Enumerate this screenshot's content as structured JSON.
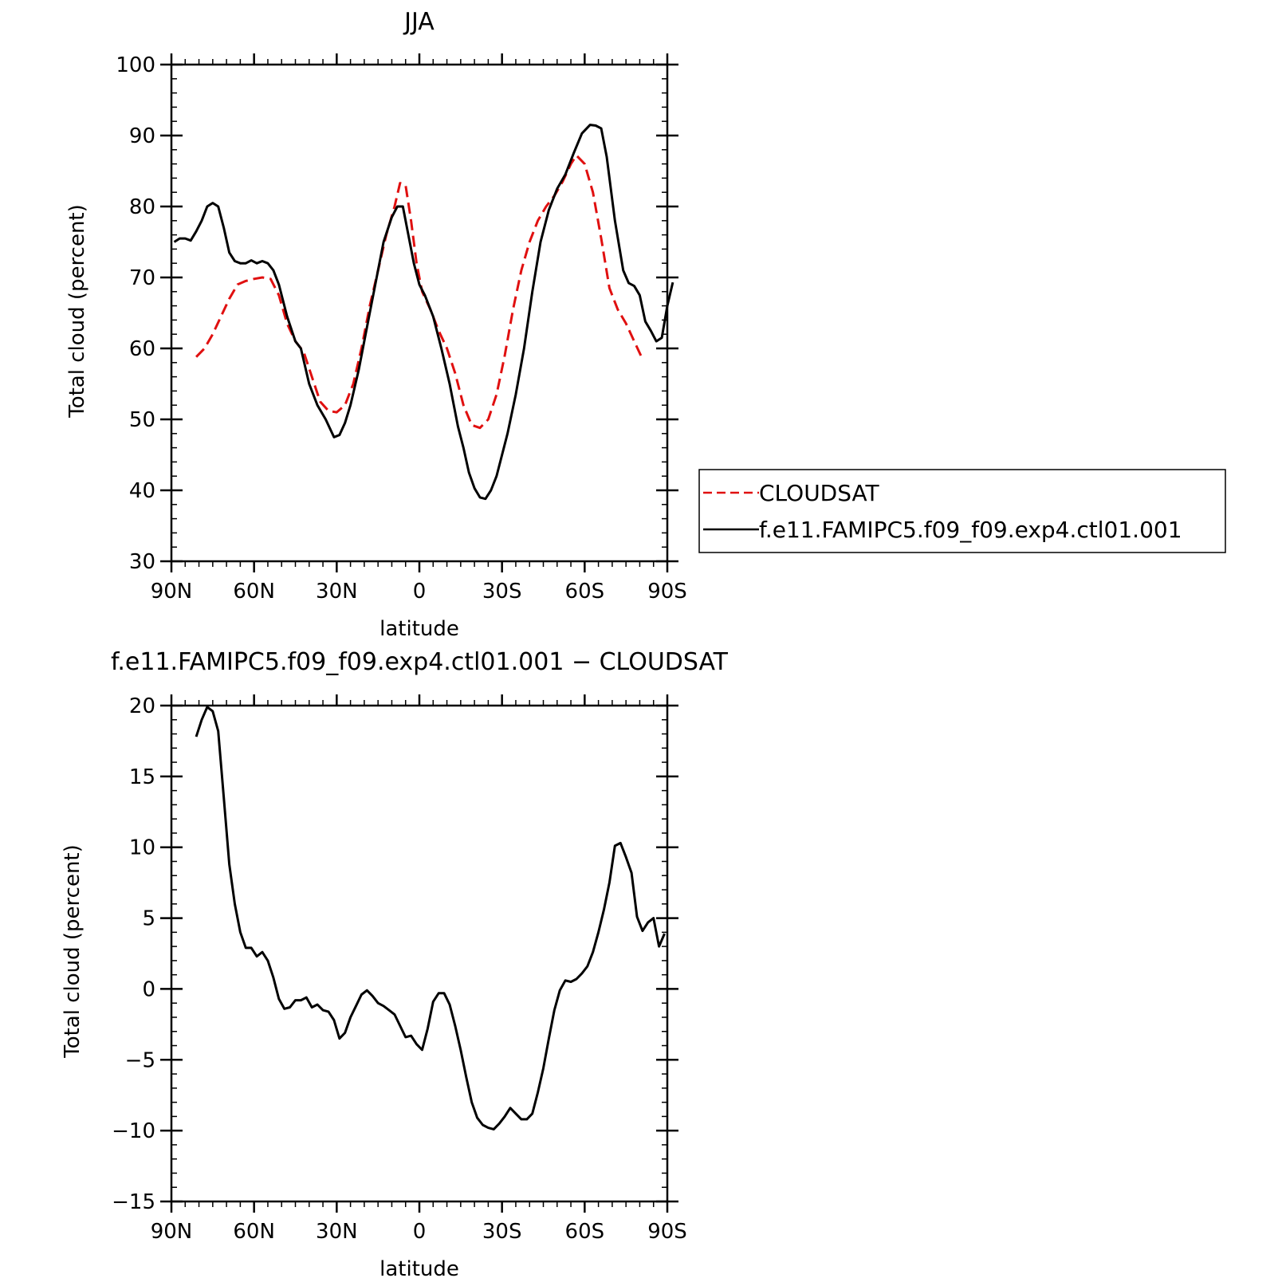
{
  "chart_data": [
    {
      "type": "line",
      "title": "JJA",
      "xlabel": "latitude",
      "ylabel": "Total cloud (percent)",
      "xlim": [
        -90,
        90
      ],
      "ylim": [
        30,
        100
      ],
      "xticks": [
        -90,
        -60,
        -30,
        0,
        30,
        60,
        90
      ],
      "xtick_labels": [
        "90N",
        "60N",
        "30N",
        "0",
        "30S",
        "60S",
        "90S"
      ],
      "yticks": [
        30,
        40,
        50,
        60,
        70,
        80,
        90,
        100
      ],
      "ytick_labels": [
        "30",
        "40",
        "50",
        "60",
        "70",
        "80",
        "90",
        "100"
      ],
      "legend": {
        "position": "right"
      },
      "series": [
        {
          "name": "CLOUDSAT",
          "color": "#e01010",
          "dash": "dashed",
          "points": [
            [
              -81,
              58.8
            ],
            [
              -78,
              60
            ],
            [
              -75,
              62
            ],
            [
              -72,
              64.5
            ],
            [
              -69,
              67
            ],
            [
              -66,
              69
            ],
            [
              -63,
              69.5
            ],
            [
              -60,
              69.8
            ],
            [
              -57,
              70
            ],
            [
              -54,
              69.8
            ],
            [
              -51,
              67.5
            ],
            [
              -48,
              63.5
            ],
            [
              -45,
              61
            ],
            [
              -42,
              59.5
            ],
            [
              -39,
              56
            ],
            [
              -36,
              52.5
            ],
            [
              -33,
              51.2
            ],
            [
              -30,
              51
            ],
            [
              -27,
              52
            ],
            [
              -24,
              55
            ],
            [
              -21,
              60
            ],
            [
              -18,
              66
            ],
            [
              -15,
              71
            ],
            [
              -12,
              76
            ],
            [
              -9,
              80
            ],
            [
              -7,
              83.3
            ],
            [
              -5,
              83
            ],
            [
              -3,
              78
            ],
            [
              -1,
              72
            ],
            [
              1,
              68
            ],
            [
              4,
              65.5
            ],
            [
              7,
              62.5
            ],
            [
              10,
              60
            ],
            [
              13,
              56.5
            ],
            [
              16,
              52
            ],
            [
              19,
              49.2
            ],
            [
              22,
              48.8
            ],
            [
              25,
              50
            ],
            [
              28,
              53.5
            ],
            [
              31,
              59
            ],
            [
              34,
              65.5
            ],
            [
              37,
              71
            ],
            [
              40,
              75
            ],
            [
              43,
              78
            ],
            [
              46,
              80
            ],
            [
              49,
              81.5
            ],
            [
              52,
              83.5
            ],
            [
              55,
              86
            ],
            [
              57,
              87.2
            ],
            [
              60,
              86
            ],
            [
              63,
              82
            ],
            [
              66,
              75.5
            ],
            [
              69,
              68.5
            ],
            [
              72,
              65.5
            ],
            [
              75,
              63.5
            ],
            [
              78,
              61
            ],
            [
              81,
              58.5
            ]
          ]
        },
        {
          "name": "f.e11.FAMIPC5.f09_f09.exp4.ctl01.001",
          "color": "#000000",
          "dash": "solid",
          "points": [
            [
              -89,
              75
            ],
            [
              -87,
              75.5
            ],
            [
              -85,
              75.5
            ],
            [
              -83,
              75.2
            ],
            [
              -81,
              76.5
            ],
            [
              -79,
              78
            ],
            [
              -77,
              80
            ],
            [
              -75,
              80.5
            ],
            [
              -73,
              80
            ],
            [
              -71,
              77
            ],
            [
              -69,
              73.5
            ],
            [
              -67,
              72.3
            ],
            [
              -65,
              72
            ],
            [
              -63,
              72
            ],
            [
              -61,
              72.4
            ],
            [
              -59,
              72
            ],
            [
              -57,
              72.3
            ],
            [
              -55,
              72
            ],
            [
              -53,
              71
            ],
            [
              -51,
              69
            ],
            [
              -48,
              64.5
            ],
            [
              -45,
              61
            ],
            [
              -43,
              60
            ],
            [
              -40,
              55
            ],
            [
              -37,
              52
            ],
            [
              -34,
              50
            ],
            [
              -31,
              47.5
            ],
            [
              -29,
              47.8
            ],
            [
              -27,
              49.5
            ],
            [
              -25,
              52
            ],
            [
              -22,
              57
            ],
            [
              -19,
              63
            ],
            [
              -16,
              69
            ],
            [
              -13,
              75
            ],
            [
              -10,
              78.5
            ],
            [
              -8,
              80
            ],
            [
              -6,
              80
            ],
            [
              -4,
              76
            ],
            [
              -2,
              72
            ],
            [
              0,
              69
            ],
            [
              2,
              67.5
            ],
            [
              5,
              64.5
            ],
            [
              8,
              60
            ],
            [
              11,
              55
            ],
            [
              14,
              49
            ],
            [
              16,
              46
            ],
            [
              18,
              42.5
            ],
            [
              20,
              40.3
            ],
            [
              22,
              39
            ],
            [
              24,
              38.8
            ],
            [
              26,
              40
            ],
            [
              28,
              42
            ],
            [
              30,
              45
            ],
            [
              32,
              48
            ],
            [
              35,
              53.5
            ],
            [
              38,
              60
            ],
            [
              41,
              68
            ],
            [
              44,
              75
            ],
            [
              47,
              79.5
            ],
            [
              50,
              82.5
            ],
            [
              53,
              84.5
            ],
            [
              56,
              87.5
            ],
            [
              59,
              90.3
            ],
            [
              62,
              91.5
            ],
            [
              64,
              91.4
            ],
            [
              66,
              91
            ],
            [
              68,
              87
            ],
            [
              71,
              78
            ],
            [
              74,
              71
            ],
            [
              76,
              69.2
            ],
            [
              78,
              68.8
            ],
            [
              80,
              67.5
            ],
            [
              82,
              63.8
            ],
            [
              84,
              62.5
            ],
            [
              86,
              61
            ],
            [
              88,
              61.5
            ],
            [
              90,
              66
            ],
            [
              92,
              69.3
            ]
          ]
        }
      ]
    },
    {
      "type": "line",
      "title": "f.e11.FAMIPC5.f09_f09.exp4.ctl01.001 − CLOUDSAT",
      "xlabel": "latitude",
      "ylabel": "Total cloud (percent)",
      "xlim": [
        -90,
        90
      ],
      "ylim": [
        -15,
        20
      ],
      "xticks": [
        -90,
        -60,
        -30,
        0,
        30,
        60,
        90
      ],
      "xtick_labels": [
        "90N",
        "60N",
        "30N",
        "0",
        "30S",
        "60S",
        "90S"
      ],
      "yticks": [
        -15,
        -10,
        -5,
        0,
        5,
        10,
        15,
        20
      ],
      "ytick_labels": [
        "−15",
        "−10",
        "−5",
        "0",
        "5",
        "10",
        "15",
        "20"
      ],
      "series": [
        {
          "color": "#000000",
          "dash": "solid",
          "points": [
            [
              -81,
              17.8
            ],
            [
              -79,
              19
            ],
            [
              -77,
              19.9
            ],
            [
              -75,
              19.6
            ],
            [
              -73,
              18.2
            ],
            [
              -71,
              13.5
            ],
            [
              -69,
              8.8
            ],
            [
              -67,
              6
            ],
            [
              -65,
              4
            ],
            [
              -63,
              2.9
            ],
            [
              -61,
              2.9
            ],
            [
              -59,
              2.3
            ],
            [
              -57,
              2.6
            ],
            [
              -55,
              2
            ],
            [
              -53,
              0.8
            ],
            [
              -51,
              -0.7
            ],
            [
              -49,
              -1.4
            ],
            [
              -47,
              -1.3
            ],
            [
              -45,
              -0.8
            ],
            [
              -43,
              -0.8
            ],
            [
              -41,
              -0.6
            ],
            [
              -39,
              -1.3
            ],
            [
              -37,
              -1.1
            ],
            [
              -35,
              -1.5
            ],
            [
              -33,
              -1.6
            ],
            [
              -31,
              -2.2
            ],
            [
              -29,
              -3.5
            ],
            [
              -27,
              -3.1
            ],
            [
              -25,
              -2
            ],
            [
              -23,
              -1.2
            ],
            [
              -21,
              -0.4
            ],
            [
              -19,
              -0.1
            ],
            [
              -17,
              -0.5
            ],
            [
              -15,
              -1
            ],
            [
              -13,
              -1.2
            ],
            [
              -11,
              -1.5
            ],
            [
              -9,
              -1.8
            ],
            [
              -7,
              -2.6
            ],
            [
              -5,
              -3.4
            ],
            [
              -3,
              -3.3
            ],
            [
              -1,
              -3.9
            ],
            [
              1,
              -4.3
            ],
            [
              3,
              -2.8
            ],
            [
              5,
              -0.9
            ],
            [
              7,
              -0.3
            ],
            [
              9,
              -0.3
            ],
            [
              11,
              -1.1
            ],
            [
              13,
              -2.6
            ],
            [
              15,
              -4.3
            ],
            [
              17,
              -6.2
            ],
            [
              19,
              -8
            ],
            [
              21,
              -9.1
            ],
            [
              23,
              -9.6
            ],
            [
              25,
              -9.8
            ],
            [
              27,
              -9.9
            ],
            [
              29,
              -9.5
            ],
            [
              31,
              -9
            ],
            [
              33,
              -8.4
            ],
            [
              35,
              -8.8
            ],
            [
              37,
              -9.2
            ],
            [
              39,
              -9.2
            ],
            [
              41,
              -8.8
            ],
            [
              43,
              -7.3
            ],
            [
              45,
              -5.6
            ],
            [
              47,
              -3.5
            ],
            [
              49,
              -1.5
            ],
            [
              51,
              -0.1
            ],
            [
              53,
              0.6
            ],
            [
              55,
              0.5
            ],
            [
              57,
              0.7
            ],
            [
              59,
              1.1
            ],
            [
              61,
              1.6
            ],
            [
              63,
              2.6
            ],
            [
              65,
              4
            ],
            [
              67,
              5.6
            ],
            [
              69,
              7.5
            ],
            [
              71,
              10.1
            ],
            [
              73,
              10.3
            ],
            [
              75,
              9.3
            ],
            [
              77,
              8.2
            ],
            [
              79,
              5.1
            ],
            [
              81,
              4.1
            ],
            [
              83,
              4.7
            ],
            [
              85,
              5
            ],
            [
              87,
              3
            ],
            [
              89,
              3.9
            ]
          ]
        }
      ]
    }
  ]
}
